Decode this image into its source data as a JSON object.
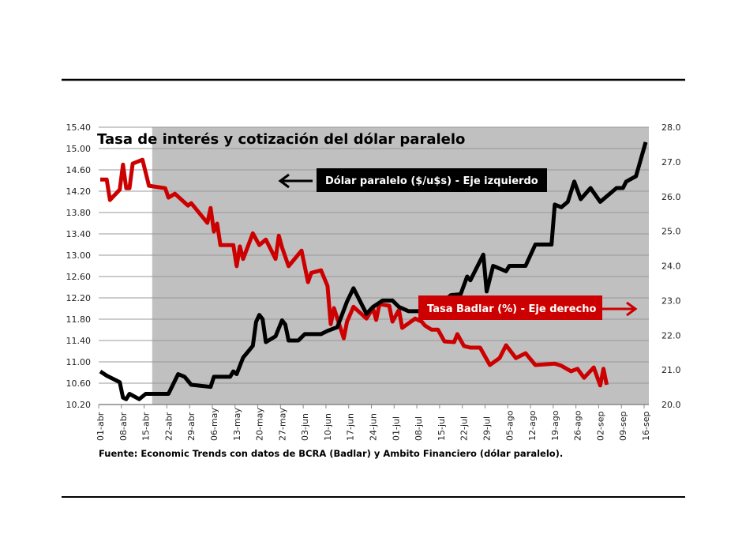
{
  "chart_data": {
    "type": "line",
    "title": "Tasa de interés y cotización del dólar paralelo",
    "source": "Fuente: Economic Trends con datos de BCRA (Badlar) y Ambito Financiero (dólar paralelo).",
    "x_tick_labels": [
      "01-abr",
      "08-abr",
      "15-abr",
      "22-abr",
      "29-abr",
      "06-may",
      "13-may",
      "20-may",
      "27-may",
      "03-jun",
      "10-jun",
      "17-jun",
      "24-jun",
      "01-jul",
      "08-jul",
      "15-jul",
      "22-jul",
      "29-jul",
      "05-ago",
      "12-ago",
      "19-ago",
      "26-ago",
      "02-sep",
      "09-sep",
      "16-sep"
    ],
    "y_left": {
      "range": [
        10.2,
        15.4
      ],
      "ticks": [
        "10.20",
        "10.60",
        "11.00",
        "11.40",
        "11.80",
        "12.20",
        "12.60",
        "13.00",
        "13.40",
        "13.80",
        "14.20",
        "14.60",
        "15.00",
        "15.40"
      ]
    },
    "y_right": {
      "range": [
        20.0,
        28.0
      ],
      "ticks": [
        "20.0",
        "21.0",
        "22.0",
        "23.0",
        "24.0",
        "25.0",
        "26.0",
        "27.0",
        "28.0"
      ]
    },
    "grid": true,
    "shaded_region": {
      "from": "17-abr",
      "to": "16-sep",
      "color": "#c0c0c0"
    },
    "series": [
      {
        "name": "Dólar paralelo ($/u$s) - Eje izquierdo",
        "axis": "left",
        "color": "#000000",
        "arrow": "left",
        "points": [
          [
            "01-abr",
            10.82
          ],
          [
            "03-abr",
            10.74
          ],
          [
            "07-abr",
            10.62
          ],
          [
            "08-abr",
            10.33
          ],
          [
            "09-abr",
            10.3
          ],
          [
            "10-abr",
            10.4
          ],
          [
            "13-abr",
            10.3
          ],
          [
            "15-abr",
            10.4
          ],
          [
            "22-abr",
            10.4
          ],
          [
            "25-abr",
            10.77
          ],
          [
            "27-abr",
            10.72
          ],
          [
            "29-abr",
            10.57
          ],
          [
            "05-may",
            10.53
          ],
          [
            "06-may",
            10.72
          ],
          [
            "11-may",
            10.72
          ],
          [
            "12-may",
            10.82
          ],
          [
            "13-may",
            10.77
          ],
          [
            "15-may",
            11.08
          ],
          [
            "18-may",
            11.3
          ],
          [
            "19-may",
            11.75
          ],
          [
            "20-may",
            11.88
          ],
          [
            "21-may",
            11.8
          ],
          [
            "22-may",
            11.37
          ],
          [
            "25-may",
            11.48
          ],
          [
            "27-may",
            11.78
          ],
          [
            "28-may",
            11.7
          ],
          [
            "29-may",
            11.4
          ],
          [
            "01-jun",
            11.4
          ],
          [
            "03-jun",
            11.52
          ],
          [
            "08-jun",
            11.52
          ],
          [
            "10-jun",
            11.58
          ],
          [
            "13-jun",
            11.65
          ],
          [
            "16-jun",
            12.13
          ],
          [
            "18-jun",
            12.38
          ],
          [
            "22-jun",
            11.9
          ],
          [
            "24-jun",
            12.03
          ],
          [
            "27-jun",
            12.15
          ],
          [
            "30-jun",
            12.15
          ],
          [
            "02-jul",
            12.03
          ],
          [
            "05-jul",
            11.95
          ],
          [
            "09-jul",
            11.95
          ],
          [
            "11-jul",
            12.05
          ],
          [
            "16-jul",
            12.15
          ],
          [
            "18-jul",
            12.25
          ],
          [
            "21-jul",
            12.27
          ],
          [
            "23-jul",
            12.6
          ],
          [
            "24-jul",
            12.53
          ],
          [
            "28-jul",
            13.01
          ],
          [
            "29-jul",
            12.32
          ],
          [
            "31-jul",
            12.8
          ],
          [
            "04-ago",
            12.7
          ],
          [
            "05-ago",
            12.8
          ],
          [
            "10-ago",
            12.8
          ],
          [
            "13-ago",
            13.2
          ],
          [
            "18-ago",
            13.2
          ],
          [
            "19-ago",
            13.95
          ],
          [
            "21-ago",
            13.9
          ],
          [
            "23-ago",
            14.0
          ],
          [
            "25-ago",
            14.38
          ],
          [
            "27-ago",
            14.05
          ],
          [
            "30-ago",
            14.26
          ],
          [
            "02-sep",
            14.0
          ],
          [
            "07-sep",
            14.26
          ],
          [
            "09-sep",
            14.26
          ],
          [
            "10-sep",
            14.38
          ],
          [
            "13-sep",
            14.48
          ],
          [
            "16-sep",
            15.12
          ]
        ]
      },
      {
        "name": "Tasa Badlar (%) - Eje derecho",
        "axis": "right",
        "color": "#cc0000",
        "arrow": "right",
        "points": [
          [
            "01-abr",
            26.49
          ],
          [
            "03-abr",
            26.49
          ],
          [
            "04-abr",
            25.9
          ],
          [
            "07-abr",
            26.2
          ],
          [
            "08-abr",
            26.92
          ],
          [
            "09-abr",
            26.24
          ],
          [
            "10-abr",
            26.24
          ],
          [
            "11-abr",
            26.95
          ],
          [
            "14-abr",
            27.06
          ],
          [
            "16-abr",
            26.31
          ],
          [
            "21-abr",
            26.24
          ],
          [
            "22-abr",
            25.97
          ],
          [
            "24-abr",
            26.08
          ],
          [
            "28-abr",
            25.74
          ],
          [
            "29-abr",
            25.81
          ],
          [
            "04-may",
            25.24
          ],
          [
            "05-may",
            25.67
          ],
          [
            "06-may",
            24.99
          ],
          [
            "07-may",
            25.22
          ],
          [
            "08-may",
            24.6
          ],
          [
            "12-may",
            24.6
          ],
          [
            "13-may",
            23.99
          ],
          [
            "14-may",
            24.56
          ],
          [
            "15-may",
            24.2
          ],
          [
            "18-may",
            24.94
          ],
          [
            "20-may",
            24.6
          ],
          [
            "22-may",
            24.76
          ],
          [
            "25-may",
            24.2
          ],
          [
            "26-may",
            24.87
          ],
          [
            "27-may",
            24.53
          ],
          [
            "29-may",
            23.99
          ],
          [
            "02-jun",
            24.44
          ],
          [
            "04-jun",
            23.53
          ],
          [
            "05-jun",
            23.8
          ],
          [
            "08-jun",
            23.87
          ],
          [
            "10-jun",
            23.42
          ],
          [
            "11-jun",
            22.32
          ],
          [
            "12-jun",
            22.78
          ],
          [
            "15-jun",
            21.91
          ],
          [
            "16-jun",
            22.39
          ],
          [
            "18-jun",
            22.82
          ],
          [
            "22-jun",
            22.48
          ],
          [
            "24-jun",
            22.78
          ],
          [
            "25-jun",
            22.44
          ],
          [
            "26-jun",
            22.9
          ],
          [
            "29-jun",
            22.85
          ],
          [
            "30-jun",
            22.39
          ],
          [
            "02-jul",
            22.73
          ],
          [
            "03-jul",
            22.21
          ],
          [
            "07-jul",
            22.48
          ],
          [
            "09-jul",
            22.39
          ],
          [
            "10-jul",
            22.28
          ],
          [
            "12-jul",
            22.16
          ],
          [
            "14-jul",
            22.16
          ],
          [
            "16-jul",
            21.82
          ],
          [
            "19-jul",
            21.8
          ],
          [
            "20-jul",
            22.03
          ],
          [
            "22-jul",
            21.69
          ],
          [
            "24-jul",
            21.64
          ],
          [
            "27-jul",
            21.64
          ],
          [
            "30-jul",
            21.14
          ],
          [
            "02-ago",
            21.34
          ],
          [
            "04-ago",
            21.71
          ],
          [
            "07-ago",
            21.34
          ],
          [
            "10-ago",
            21.48
          ],
          [
            "13-ago",
            21.14
          ],
          [
            "19-ago",
            21.18
          ],
          [
            "21-ago",
            21.12
          ],
          [
            "24-ago",
            20.96
          ],
          [
            "26-ago",
            21.03
          ],
          [
            "28-ago",
            20.77
          ],
          [
            "31-ago",
            21.07
          ],
          [
            "02-sep",
            20.55
          ],
          [
            "03-sep",
            21.03
          ],
          [
            "04-sep",
            20.57
          ]
        ]
      }
    ]
  }
}
